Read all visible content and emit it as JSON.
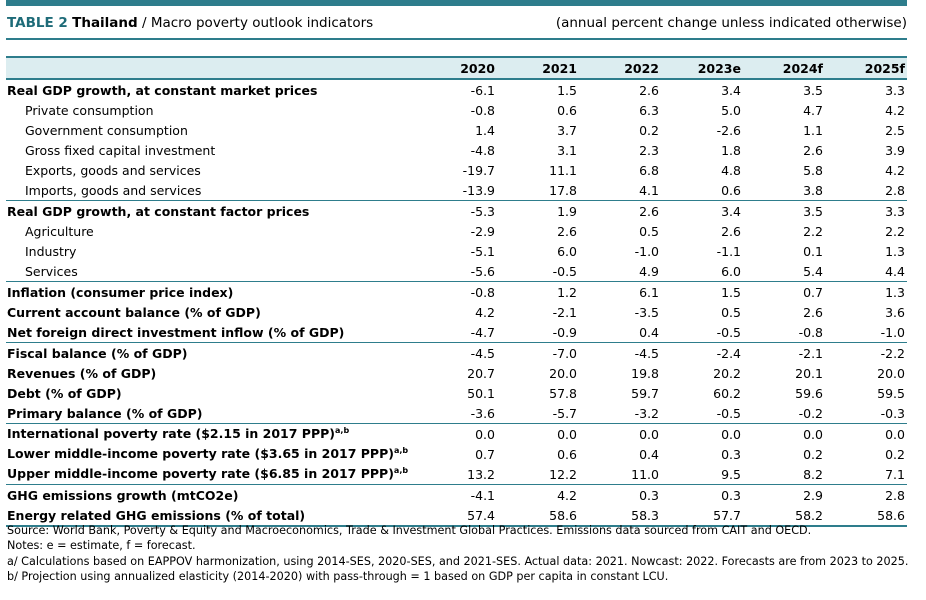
{
  "header": {
    "table_label": "TABLE 2",
    "country": "Thailand",
    "separator": " / ",
    "title": "Macro poverty outlook indicators",
    "units_note": "(annual percent change unless indicated otherwise)"
  },
  "table": {
    "columns": [
      "2020",
      "2021",
      "2022",
      "2023e",
      "2024f",
      "2025f"
    ],
    "rows": [
      {
        "label": "Real GDP growth, at constant market prices",
        "sup": "",
        "values": [
          "-6.1",
          "1.5",
          "2.6",
          "3.4",
          "3.5",
          "3.3"
        ]
      },
      {
        "label": "Private consumption",
        "sup": "",
        "values": [
          "-0.8",
          "0.6",
          "6.3",
          "5.0",
          "4.7",
          "4.2"
        ]
      },
      {
        "label": "Government consumption",
        "sup": "",
        "values": [
          "1.4",
          "3.7",
          "0.2",
          "-2.6",
          "1.1",
          "2.5"
        ]
      },
      {
        "label": "Gross fixed capital investment",
        "sup": "",
        "values": [
          "-4.8",
          "3.1",
          "2.3",
          "1.8",
          "2.6",
          "3.9"
        ]
      },
      {
        "label": "Exports, goods and services",
        "sup": "",
        "values": [
          "-19.7",
          "11.1",
          "6.8",
          "4.8",
          "5.8",
          "4.2"
        ]
      },
      {
        "label": "Imports, goods and services",
        "sup": "",
        "values": [
          "-13.9",
          "17.8",
          "4.1",
          "0.6",
          "3.8",
          "2.8"
        ]
      },
      {
        "label": "Real GDP growth, at constant factor prices",
        "sup": "",
        "values": [
          "-5.3",
          "1.9",
          "2.6",
          "3.4",
          "3.5",
          "3.3"
        ]
      },
      {
        "label": "Agriculture",
        "sup": "",
        "values": [
          "-2.9",
          "2.6",
          "0.5",
          "2.6",
          "2.2",
          "2.2"
        ]
      },
      {
        "label": "Industry",
        "sup": "",
        "values": [
          "-5.1",
          "6.0",
          "-1.0",
          "-1.1",
          "0.1",
          "1.3"
        ]
      },
      {
        "label": "Services",
        "sup": "",
        "values": [
          "-5.6",
          "-0.5",
          "4.9",
          "6.0",
          "5.4",
          "4.4"
        ]
      },
      {
        "label": "Inflation (consumer price index)",
        "sup": "",
        "values": [
          "-0.8",
          "1.2",
          "6.1",
          "1.5",
          "0.7",
          "1.3"
        ]
      },
      {
        "label": "Current account balance (% of GDP)",
        "sup": "",
        "values": [
          "4.2",
          "-2.1",
          "-3.5",
          "0.5",
          "2.6",
          "3.6"
        ]
      },
      {
        "label": "Net foreign direct investment inflow (% of GDP)",
        "sup": "",
        "values": [
          "-4.7",
          "-0.9",
          "0.4",
          "-0.5",
          "-0.8",
          "-1.0"
        ]
      },
      {
        "label": "Fiscal balance (% of GDP)",
        "sup": "",
        "values": [
          "-4.5",
          "-7.0",
          "-4.5",
          "-2.4",
          "-2.1",
          "-2.2"
        ]
      },
      {
        "label": "Revenues (% of GDP)",
        "sup": "",
        "values": [
          "20.7",
          "20.0",
          "19.8",
          "20.2",
          "20.1",
          "20.0"
        ]
      },
      {
        "label": "Debt (% of GDP)",
        "sup": "",
        "values": [
          "50.1",
          "57.8",
          "59.7",
          "60.2",
          "59.6",
          "59.5"
        ]
      },
      {
        "label": "Primary balance (% of GDP)",
        "sup": "",
        "values": [
          "-3.6",
          "-5.7",
          "-3.2",
          "-0.5",
          "-0.2",
          "-0.3"
        ]
      },
      {
        "label": "International poverty rate ($2.15 in 2017 PPP)",
        "sup": "a,b",
        "values": [
          "0.0",
          "0.0",
          "0.0",
          "0.0",
          "0.0",
          "0.0"
        ]
      },
      {
        "label": "Lower middle-income poverty rate ($3.65 in 2017 PPP)",
        "sup": "a,b",
        "values": [
          "0.7",
          "0.6",
          "0.4",
          "0.3",
          "0.2",
          "0.2"
        ]
      },
      {
        "label": "Upper middle-income poverty rate ($6.85 in 2017 PPP)",
        "sup": "a,b",
        "values": [
          "13.2",
          "12.2",
          "11.0",
          "9.5",
          "8.2",
          "7.1"
        ]
      },
      {
        "label": "GHG emissions growth (mtCO2e)",
        "sup": "",
        "values": [
          "-4.1",
          "4.2",
          "0.3",
          "0.3",
          "2.9",
          "2.8"
        ]
      },
      {
        "label": "Energy related GHG emissions (% of total)",
        "sup": "",
        "values": [
          "57.4",
          "58.6",
          "58.3",
          "57.7",
          "58.2",
          "58.6"
        ]
      }
    ]
  },
  "notes": [
    "Source: World Bank, Poverty & Equity and Macroeconomics, Trade & Investment Global Practices. Emissions data sourced from CAIT and OECD.",
    "Notes: e = estimate, f = forecast.",
    "a/ Calculations based on EAPPOV harmonization, using 2014-SES, 2020-SES, and 2021-SES. Actual data: 2021. Nowcast: 2022. Forecasts are from 2023 to 2025.",
    "b/ Projection using annualized elasticity (2014-2020) with pass-through = 1 based on GDP per capita in constant LCU."
  ],
  "colors": {
    "accent": "#2e7d8c",
    "header_fill": "#dcedf0",
    "label_accent": "#1e6b78"
  }
}
